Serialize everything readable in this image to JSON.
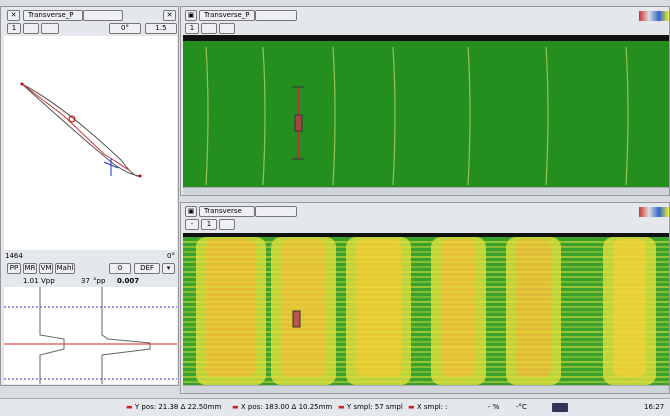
{
  "left_panel": {
    "title": "Transverse_P",
    "toolbar": [
      "1",
      "0°",
      "1.5"
    ],
    "count": "1464",
    "angle": "0°",
    "buttons": [
      "PP",
      "MR",
      "VM",
      "Mahl",
      "0",
      "DEF"
    ],
    "readout": [
      "1.01",
      "Vpp",
      "37",
      "°pp",
      "0.007"
    ]
  },
  "top_panel": {
    "title": "Transverse_P",
    "toolbar": [
      "1"
    ]
  },
  "bottom_panel": {
    "title": "Transverse",
    "toolbar": [
      "-",
      "1"
    ]
  },
  "status_bar": {
    "items": [
      "Y pos: 21.38 Δ 22.50mm",
      "X pos: 183.00 Δ 10.25mm",
      "Y smpl: 57 smpl",
      "X smpl: :"
    ],
    "percent": "- %",
    "temperature": "-°C",
    "time": "16:27"
  }
}
